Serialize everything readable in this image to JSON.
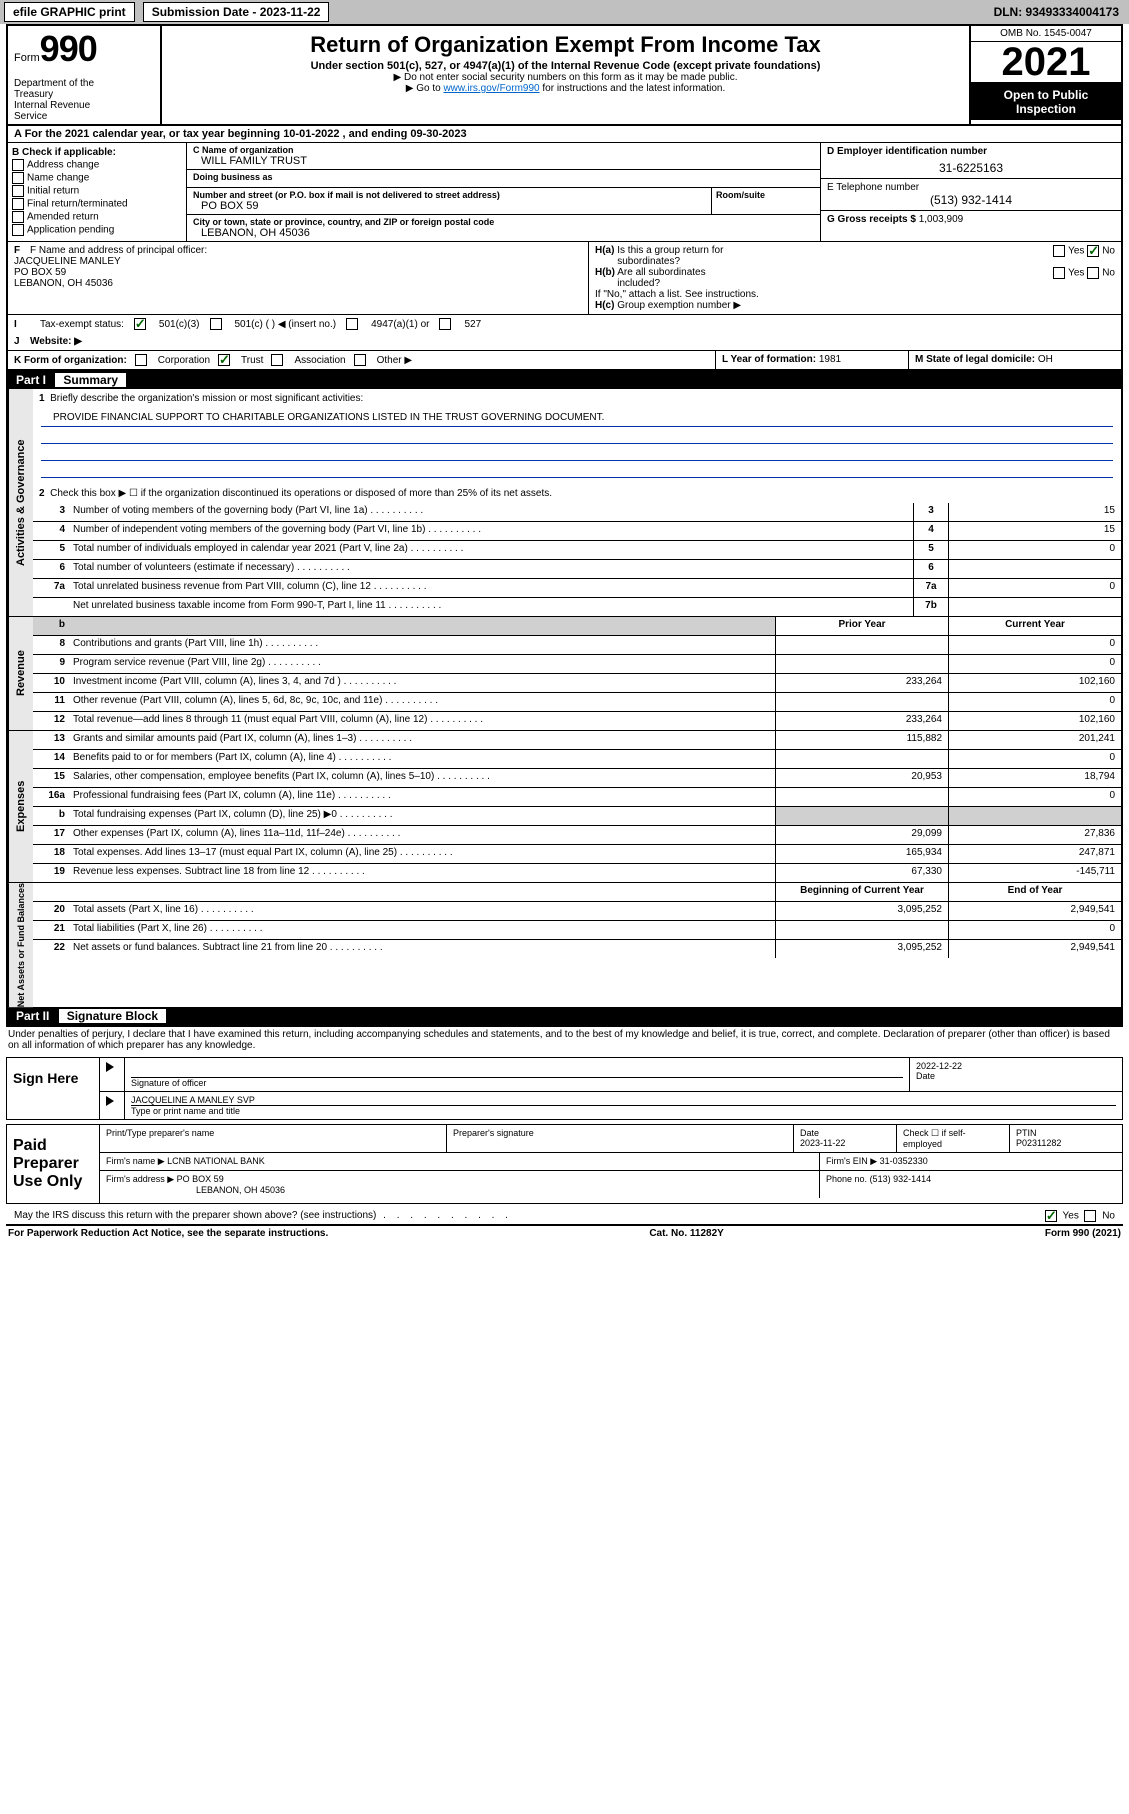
{
  "header": {
    "efile": "efile GRAPHIC print",
    "submission_label": "Submission Date - 2023-11-22",
    "dln": "DLN: 93493334004173"
  },
  "title_block": {
    "form_prefix": "Form",
    "form_number": "990",
    "dept": "Department of the Treasury\nInternal Revenue Service",
    "main_title": "Return of Organization Exempt From Income Tax",
    "subtitle": "Under section 501(c), 527, or 4947(a)(1) of the Internal Revenue Code (except private foundations)",
    "instr1": "▶ Do not enter social security numbers on this form as it may be made public.",
    "instr2_pre": "▶ Go to ",
    "instr2_link": "www.irs.gov/Form990",
    "instr2_post": " for instructions and the latest information.",
    "omb": "OMB No. 1545-0047",
    "year": "2021",
    "open_public": "Open to Public Inspection"
  },
  "section_a": {
    "text": "A For the 2021 calendar year, or tax year beginning 10-01-2022  , and ending 09-30-2023"
  },
  "box_b": {
    "title": "B Check if applicable:",
    "items": [
      "Address change",
      "Name change",
      "Initial return",
      "Final return/terminated",
      "Amended return",
      "Application pending"
    ]
  },
  "box_c": {
    "name_label": "C Name of organization",
    "name": "WILL FAMILY TRUST",
    "dba_label": "Doing business as",
    "dba": "",
    "addr_label": "Number and street (or P.O. box if mail is not delivered to street address)",
    "room_label": "Room/suite",
    "addr": "PO BOX 59",
    "city_label": "City or town, state or province, country, and ZIP or foreign postal code",
    "city": "LEBANON, OH  45036"
  },
  "box_d": {
    "label": "D Employer identification number",
    "value": "31-6225163"
  },
  "box_e": {
    "label": "E Telephone number",
    "value": "(513) 932-1414"
  },
  "box_g": {
    "label": "G Gross receipts $",
    "value": "1,003,909"
  },
  "box_f": {
    "label": "F Name and address of principal officer:",
    "name": "JACQUELINE MANLEY",
    "addr1": "PO BOX 59",
    "addr2": "LEBANON, OH  45036"
  },
  "box_h": {
    "ha_label": "H(a)  Is this a group return for subordinates?",
    "hb_label": "H(b)  Are all subordinates included?",
    "hb_note": "If \"No,\" attach a list. See instructions.",
    "hc_label": "H(c)  Group exemption number ▶",
    "yes": "Yes",
    "no": "No"
  },
  "box_i": {
    "label": "Tax-exempt status:",
    "opts": [
      "501(c)(3)",
      "501(c) (   ) ◀ (insert no.)",
      "4947(a)(1) or",
      "527"
    ]
  },
  "box_j": {
    "label": "Website: ▶"
  },
  "box_k": {
    "label": "K Form of organization:",
    "opts": [
      "Corporation",
      "Trust",
      "Association",
      "Other ▶"
    ]
  },
  "box_l": {
    "label": "L Year of formation:",
    "value": "1981"
  },
  "box_m": {
    "label": "M State of legal domicile:",
    "value": "OH"
  },
  "part1": {
    "num": "Part I",
    "title": "Summary"
  },
  "governance": {
    "vtab": "Activities & Governance",
    "line1": "Briefly describe the organization's mission or most significant activities:",
    "mission": "PROVIDE FINANCIAL SUPPORT TO CHARITABLE ORGANIZATIONS LISTED IN THE TRUST GOVERNING DOCUMENT.",
    "line2": "Check this box ▶ ☐  if the organization discontinued its operations or disposed of more than 25% of its net assets.",
    "line3": "Number of voting members of the governing body (Part VI, line 1a)",
    "val3": "15",
    "line4": "Number of independent voting members of the governing body (Part VI, line 1b)",
    "val4": "15",
    "line5": "Total number of individuals employed in calendar year 2021 (Part V, line 2a)",
    "val5": "0",
    "line6": "Total number of volunteers (estimate if necessary)",
    "val6": "",
    "line7a": "Total unrelated business revenue from Part VIII, column (C), line 12",
    "val7a": "0",
    "line7b": "Net unrelated business taxable income from Form 990-T, Part I, line 11",
    "val7b": ""
  },
  "revenue": {
    "vtab": "Revenue",
    "header_prior": "Prior Year",
    "header_current": "Current Year",
    "rows": [
      {
        "n": "8",
        "t": "Contributions and grants (Part VIII, line 1h)",
        "p": "",
        "c": "0"
      },
      {
        "n": "9",
        "t": "Program service revenue (Part VIII, line 2g)",
        "p": "",
        "c": "0"
      },
      {
        "n": "10",
        "t": "Investment income (Part VIII, column (A), lines 3, 4, and 7d )",
        "p": "233,264",
        "c": "102,160"
      },
      {
        "n": "11",
        "t": "Other revenue (Part VIII, column (A), lines 5, 6d, 8c, 9c, 10c, and 11e)",
        "p": "",
        "c": "0"
      },
      {
        "n": "12",
        "t": "Total revenue—add lines 8 through 11 (must equal Part VIII, column (A), line 12)",
        "p": "233,264",
        "c": "102,160"
      }
    ]
  },
  "expenses": {
    "vtab": "Expenses",
    "rows": [
      {
        "n": "13",
        "t": "Grants and similar amounts paid (Part IX, column (A), lines 1–3)",
        "p": "115,882",
        "c": "201,241"
      },
      {
        "n": "14",
        "t": "Benefits paid to or for members (Part IX, column (A), line 4)",
        "p": "",
        "c": "0"
      },
      {
        "n": "15",
        "t": "Salaries, other compensation, employee benefits (Part IX, column (A), lines 5–10)",
        "p": "20,953",
        "c": "18,794"
      },
      {
        "n": "16a",
        "t": "Professional fundraising fees (Part IX, column (A), line 11e)",
        "p": "",
        "c": "0"
      },
      {
        "n": "b",
        "t": "Total fundraising expenses (Part IX, column (D), line 25) ▶0",
        "p": "grey",
        "c": "grey"
      },
      {
        "n": "17",
        "t": "Other expenses (Part IX, column (A), lines 11a–11d, 11f–24e)",
        "p": "29,099",
        "c": "27,836"
      },
      {
        "n": "18",
        "t": "Total expenses. Add lines 13–17 (must equal Part IX, column (A), line 25)",
        "p": "165,934",
        "c": "247,871"
      },
      {
        "n": "19",
        "t": "Revenue less expenses. Subtract line 18 from line 12",
        "p": "67,330",
        "c": "-145,711"
      }
    ]
  },
  "netassets": {
    "vtab": "Net Assets or Fund Balances",
    "header_begin": "Beginning of Current Year",
    "header_end": "End of Year",
    "rows": [
      {
        "n": "20",
        "t": "Total assets (Part X, line 16)",
        "p": "3,095,252",
        "c": "2,949,541"
      },
      {
        "n": "21",
        "t": "Total liabilities (Part X, line 26)",
        "p": "",
        "c": "0"
      },
      {
        "n": "22",
        "t": "Net assets or fund balances. Subtract line 21 from line 20",
        "p": "3,095,252",
        "c": "2,949,541"
      }
    ]
  },
  "part2": {
    "num": "Part II",
    "title": "Signature Block"
  },
  "penalties": "Under penalties of perjury, I declare that I have examined this return, including accompanying schedules and statements, and to the best of my knowledge and belief, it is true, correct, and complete. Declaration of preparer (other than officer) is based on all information of which preparer has any knowledge.",
  "sign_here": {
    "label": "Sign Here",
    "sig_label": "Signature of officer",
    "date_label": "Date",
    "date": "2022-12-22",
    "name": "JACQUELINE A MANLEY  SVP",
    "name_label": "Type or print name and title"
  },
  "paid_preparer": {
    "label": "Paid Preparer Use Only",
    "print_label": "Print/Type preparer's name",
    "sig_label": "Preparer's signature",
    "date_label": "Date",
    "date": "2023-11-22",
    "check_label": "Check ☐ if self-employed",
    "ptin_label": "PTIN",
    "ptin": "P02311282",
    "firm_name_label": "Firm's name    ▶",
    "firm_name": "LCNB NATIONAL BANK",
    "firm_ein_label": "Firm's EIN ▶",
    "firm_ein": "31-0352330",
    "firm_addr_label": "Firm's address ▶",
    "firm_addr": "PO BOX 59",
    "firm_city": "LEBANON, OH  45036",
    "phone_label": "Phone no.",
    "phone": "(513) 932-1414"
  },
  "may_irs": {
    "text": "May the IRS discuss this return with the preparer shown above? (see instructions)",
    "yes": "Yes",
    "no": "No"
  },
  "footer": {
    "paperwork": "For Paperwork Reduction Act Notice, see the separate instructions.",
    "cat": "Cat. No. 11282Y",
    "form": "Form 990 (2021)"
  }
}
